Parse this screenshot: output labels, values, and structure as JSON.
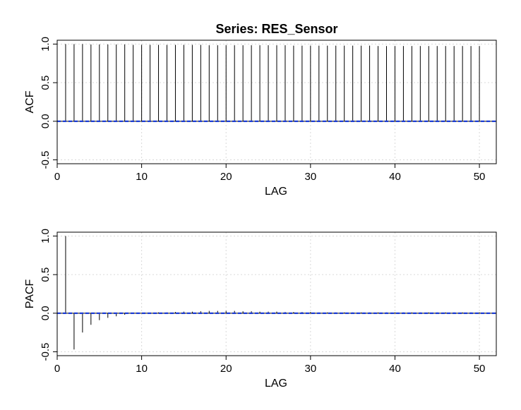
{
  "title": "Series:  RES_Sensor",
  "colors": {
    "ci_line": "#1f3fd6",
    "spike": "#000000",
    "grid": "#d9d9d9"
  },
  "chart_data": [
    {
      "type": "bar",
      "name": "acf-panel",
      "xlabel": "LAG",
      "ylabel": "ACF",
      "xlim": [
        0,
        52
      ],
      "ylim": [
        -0.55,
        1.05
      ],
      "xticks": [
        0,
        10,
        20,
        30,
        40,
        50
      ],
      "yticks": [
        -0.5,
        0.0,
        0.5,
        1.0
      ],
      "xtick_labels": [
        "0",
        "10",
        "20",
        "30",
        "40",
        "50"
      ],
      "ytick_labels": [
        "-0.5",
        "0.0",
        "0.5",
        "1.0"
      ],
      "grid": true,
      "ci": 0.0,
      "x": [
        1,
        2,
        3,
        4,
        5,
        6,
        7,
        8,
        9,
        10,
        11,
        12,
        13,
        14,
        15,
        16,
        17,
        18,
        19,
        20,
        21,
        22,
        23,
        24,
        25,
        26,
        27,
        28,
        29,
        30,
        31,
        32,
        33,
        34,
        35,
        36,
        37,
        38,
        39,
        40,
        41,
        42,
        43,
        44,
        45,
        46,
        47,
        48,
        49,
        50
      ],
      "values": [
        1.0,
        1.0,
        1.0,
        0.995,
        0.995,
        0.995,
        0.995,
        0.995,
        0.99,
        0.99,
        0.99,
        0.99,
        0.99,
        0.99,
        0.99,
        0.99,
        0.99,
        0.985,
        0.985,
        0.985,
        0.985,
        0.985,
        0.985,
        0.985,
        0.985,
        0.985,
        0.985,
        0.98,
        0.98,
        0.98,
        0.98,
        0.98,
        0.98,
        0.98,
        0.98,
        0.98,
        0.98,
        0.975,
        0.975,
        0.975,
        0.975,
        0.975,
        0.975,
        0.975,
        0.975,
        0.975,
        0.975,
        0.975,
        0.975,
        0.975
      ]
    },
    {
      "type": "bar",
      "name": "pacf-panel",
      "xlabel": "LAG",
      "ylabel": "PACF",
      "xlim": [
        0,
        52
      ],
      "ylim": [
        -0.55,
        1.05
      ],
      "xticks": [
        0,
        10,
        20,
        30,
        40,
        50
      ],
      "yticks": [
        -0.5,
        0.0,
        0.5,
        1.0
      ],
      "xtick_labels": [
        "0",
        "10",
        "20",
        "30",
        "40",
        "50"
      ],
      "ytick_labels": [
        "-0.5",
        "0.0",
        "0.5",
        "1.0"
      ],
      "grid": true,
      "ci": 0.0,
      "x": [
        1,
        2,
        3,
        4,
        5,
        6,
        7,
        8,
        9,
        10,
        11,
        12,
        13,
        14,
        15,
        16,
        17,
        18,
        19,
        20,
        21,
        22,
        23,
        24,
        25,
        26,
        27,
        28,
        29,
        30,
        31,
        32,
        33,
        34,
        35,
        36,
        37,
        38,
        39,
        40,
        41,
        42,
        43,
        44,
        45,
        46,
        47,
        48,
        49,
        50
      ],
      "values": [
        1.0,
        -0.47,
        -0.25,
        -0.15,
        -0.09,
        -0.06,
        -0.04,
        -0.02,
        -0.01,
        0.0,
        0.005,
        0.01,
        0.01,
        0.015,
        0.02,
        0.02,
        0.025,
        0.03,
        0.03,
        0.03,
        0.03,
        0.025,
        0.025,
        0.02,
        0.02,
        0.02,
        0.015,
        0.015,
        0.015,
        0.015,
        0.01,
        0.01,
        0.01,
        0.01,
        0.01,
        0.01,
        0.01,
        0.01,
        0.01,
        0.01,
        0.01,
        0.01,
        0.01,
        0.01,
        0.01,
        0.01,
        0.01,
        0.01,
        0.01,
        0.01
      ]
    }
  ]
}
